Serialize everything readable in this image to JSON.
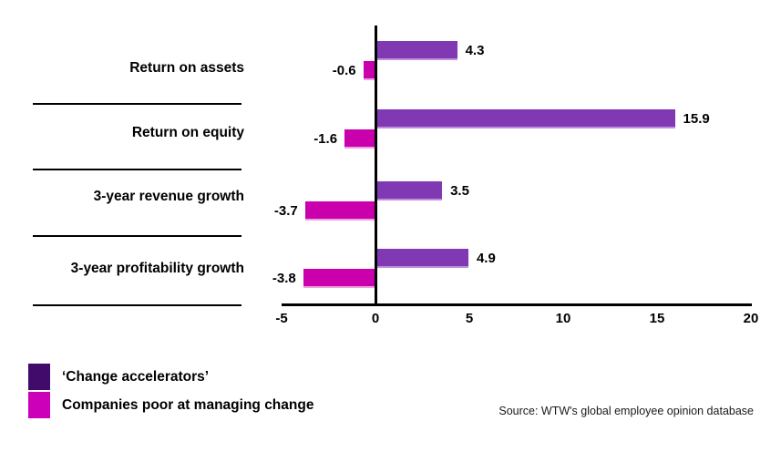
{
  "chart_data": {
    "type": "bar",
    "orientation": "horizontal",
    "title": "",
    "xlabel": "",
    "ylabel": "",
    "categories": [
      "Return on assets",
      "Return on equity",
      "3-year revenue growth",
      "3-year profitability growth"
    ],
    "series": [
      {
        "name": "‘Change accelerators’",
        "color": "#8139b3",
        "legend_color": "#400b6b",
        "values": [
          4.3,
          15.9,
          3.5,
          4.9
        ]
      },
      {
        "name": "Companies poor at managing change",
        "color": "#c900ac",
        "legend_color": "#cc00b9",
        "values": [
          -0.6,
          -1.6,
          -3.7,
          -3.8
        ]
      }
    ],
    "value_label_decimals": 1,
    "xlim": [
      -5,
      20
    ],
    "xtick_values": [
      -5,
      0,
      5,
      10,
      15,
      20
    ],
    "grid": false,
    "legend_position": "bottom-left",
    "axis_color": "#000000",
    "row_separators": true
  },
  "source_note": "Source: WTW's global employee opinion database"
}
